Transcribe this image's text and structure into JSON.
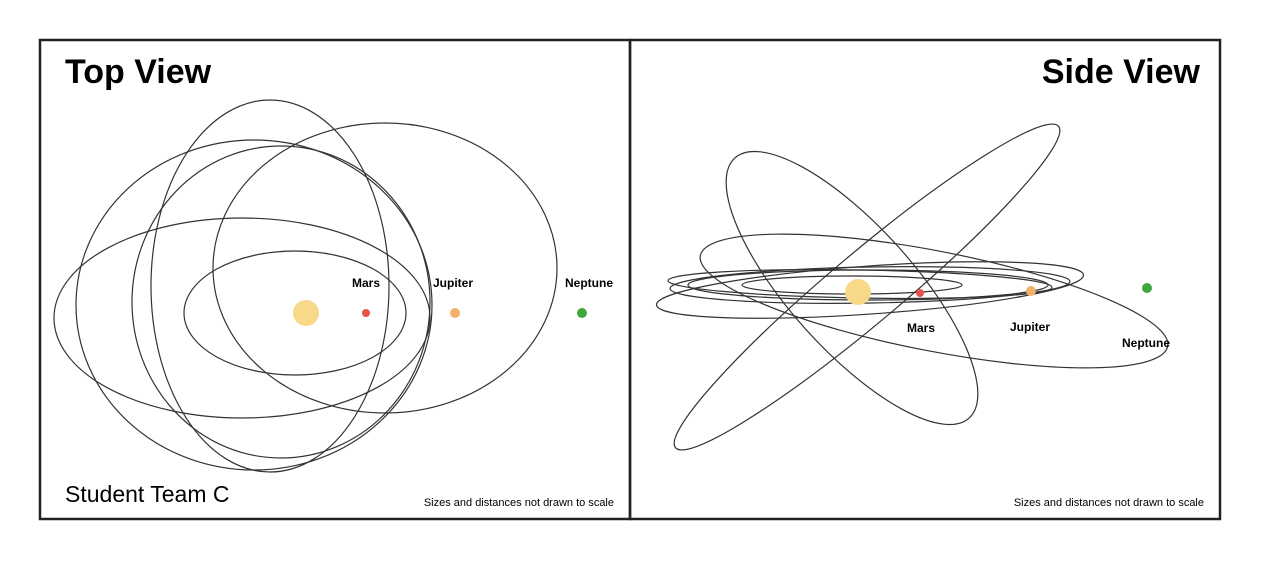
{
  "top_view": {
    "title": "Top View",
    "team_label": "Student Team C",
    "note": "Sizes and distances not drawn to scale",
    "planets": [
      {
        "name": "Mars",
        "color": "#e8524a"
      },
      {
        "name": "Jupiter",
        "color": "#f2b06b"
      },
      {
        "name": "Neptune",
        "color": "#3ea63a"
      }
    ],
    "sun_color": "#f8d98a"
  },
  "side_view": {
    "title": "Side View",
    "note": "Sizes and distances not drawn to scale",
    "planets": [
      {
        "name": "Mars",
        "color": "#e8524a"
      },
      {
        "name": "Jupiter",
        "color": "#f2b06b"
      },
      {
        "name": "Neptune",
        "color": "#3ea63a"
      }
    ],
    "sun_color": "#f8d98a"
  }
}
